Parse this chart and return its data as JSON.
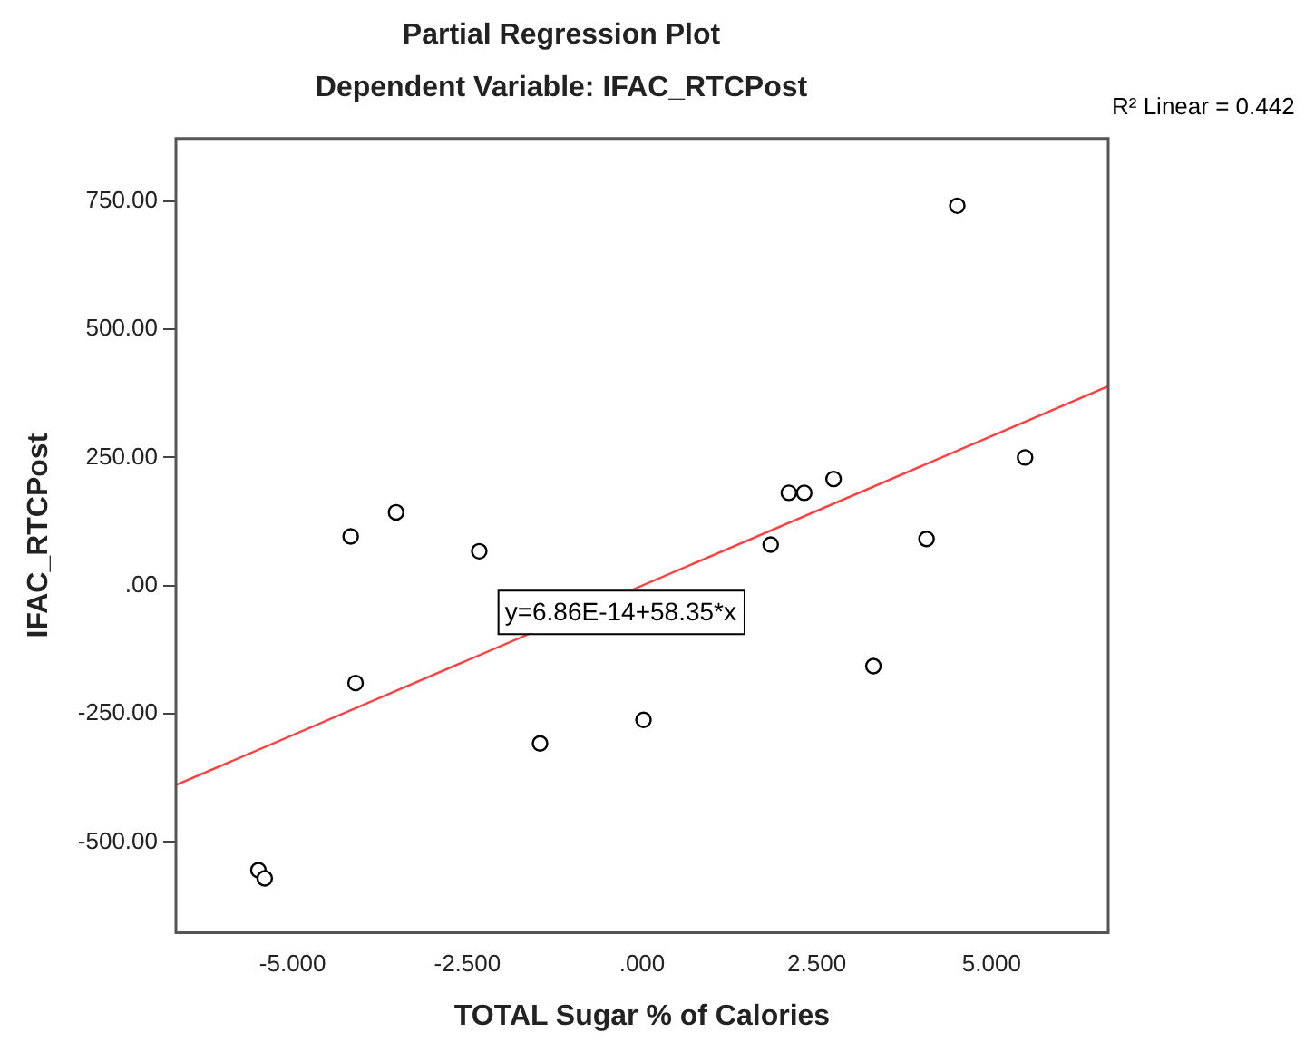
{
  "chart_data": {
    "type": "scatter",
    "title": "Partial Regression Plot",
    "subtitle": "Dependent Variable: IFAC_RTCPost",
    "xlabel": "TOTAL Sugar % of Calories",
    "ylabel": "IFAC_RTCPost",
    "xlim": [
      -6.67,
      6.67
    ],
    "ylim": [
      -677,
      872
    ],
    "xticks": [
      {
        "value": -5,
        "label": "-5.000"
      },
      {
        "value": -2.5,
        "label": "-2.500"
      },
      {
        "value": 0,
        "label": ".000"
      },
      {
        "value": 2.5,
        "label": "2.500"
      },
      {
        "value": 5,
        "label": "5.000"
      }
    ],
    "yticks": [
      {
        "value": -500,
        "label": "-500.00"
      },
      {
        "value": -250,
        "label": "-250.00"
      },
      {
        "value": 0,
        "label": ".00"
      },
      {
        "value": 250,
        "label": "250.00"
      },
      {
        "value": 500,
        "label": "500.00"
      },
      {
        "value": 750,
        "label": "750.00"
      }
    ],
    "grid": false,
    "legend": false,
    "marker": "circle",
    "series": [
      {
        "type": "scatter",
        "color": "#000000",
        "x": [
          -5.49,
          -5.4,
          -4.17,
          -3.52,
          -4.1,
          -2.33,
          -1.46,
          0.02,
          1.84,
          2.1,
          2.32,
          2.74,
          4.07,
          3.31,
          4.51,
          5.48
        ],
        "values": [
          -555,
          -571,
          96,
          143,
          -190,
          67,
          -308,
          -262,
          80,
          181,
          181,
          208,
          91,
          -157,
          741,
          250
        ]
      },
      {
        "type": "line",
        "color": "#ff4040",
        "marker": "none",
        "line_style": "solid",
        "x": [
          -6.67,
          6.67
        ],
        "values": [
          -389,
          389
        ]
      }
    ],
    "annotations": [
      "R² Linear = 0.442",
      "y=6.86E-14+58.35*x"
    ]
  }
}
